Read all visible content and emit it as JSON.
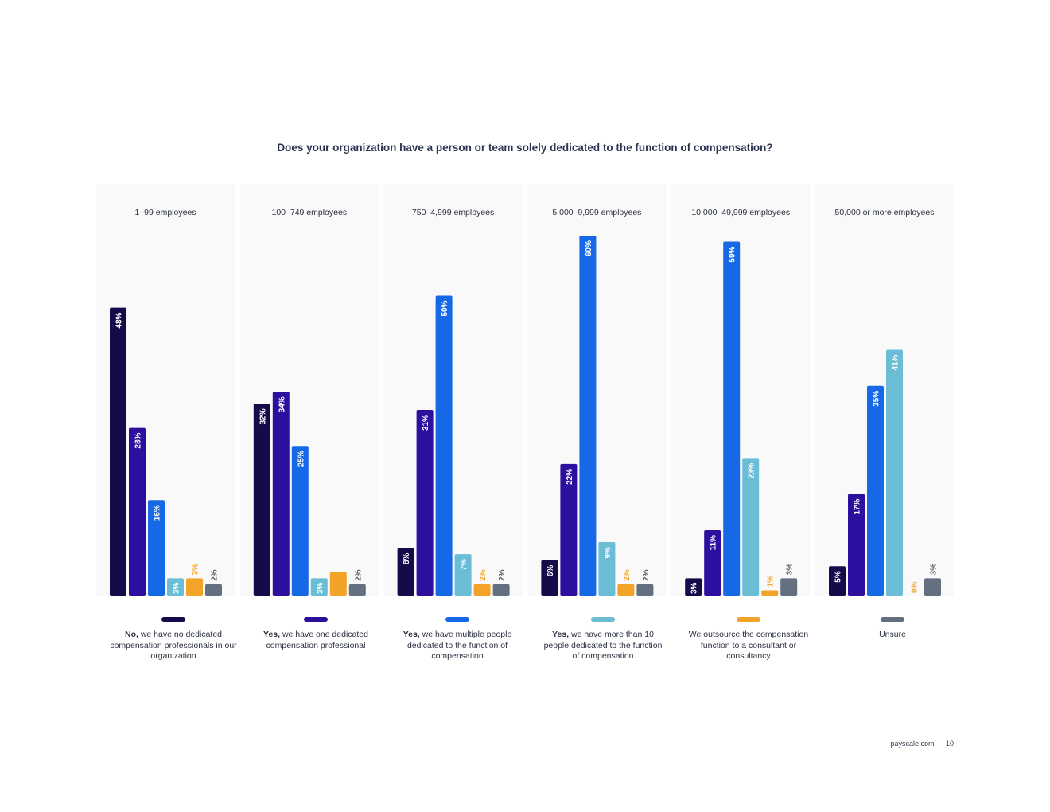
{
  "chart_data": {
    "type": "bar",
    "title": "Does your organization have a person or team solely dedicated to the function of compensation?",
    "categories": [
      "1–99 employees",
      "100–749 employees",
      "750–4,999 employees",
      "5,000–9,999 employees",
      "10,000–49,999 employees",
      "50,000 or more employees"
    ],
    "series": [
      {
        "name_bold": "No,",
        "name": "we have no dedicated compensation professionals in our organization",
        "color": "#170a4a",
        "label_color": "#ffffff",
        "values": [
          48,
          32,
          8,
          6,
          3,
          5
        ]
      },
      {
        "name_bold": "Yes,",
        "name": "we have one dedicated compensation professional",
        "color": "#2c0f9e",
        "label_color": "#ffffff",
        "values": [
          28,
          34,
          31,
          22,
          11,
          17
        ]
      },
      {
        "name_bold": "Yes,",
        "name": "we have multiple people dedicated to the function of compensation",
        "color": "#1768e6",
        "label_color": "#ffffff",
        "values": [
          16,
          25,
          50,
          60,
          59,
          35
        ]
      },
      {
        "name_bold": "Yes,",
        "name": "we have more than 10 people dedicated to the function of compensation",
        "color": "#6bbdd6",
        "label_color": "#ffffff",
        "values": [
          3,
          3,
          7,
          9,
          23,
          41
        ]
      },
      {
        "name_bold": "",
        "name": "We outsource the compensation function to a consultant or consultancy",
        "color": "#f3a328",
        "label_color": "#f3a328",
        "values": [
          3,
          4,
          2,
          2,
          1,
          0
        ]
      },
      {
        "name_bold": "",
        "name": "Unsure",
        "color": "#637080",
        "label_color": "#4a5462",
        "values": [
          2,
          2,
          2,
          2,
          3,
          3
        ]
      }
    ],
    "ylim": [
      0,
      60
    ],
    "legend": "bottom",
    "grid": false
  },
  "footer": {
    "site": "payscale.com",
    "page": "10"
  }
}
